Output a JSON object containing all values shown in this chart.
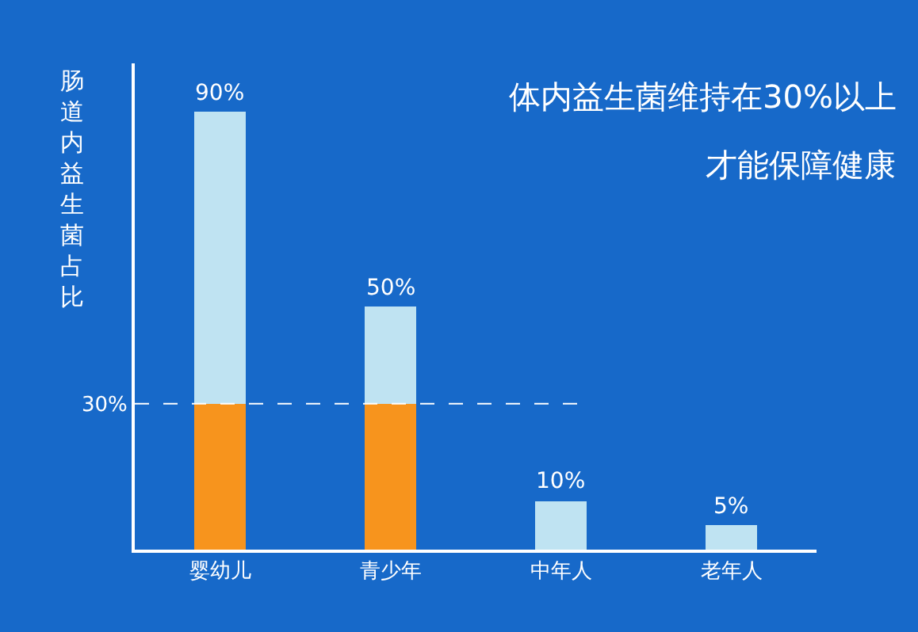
{
  "chart_data": {
    "type": "bar",
    "stacked": true,
    "ylabel": "肠道内益生菌占比",
    "categories": [
      "婴幼儿",
      "青少年",
      "中年人",
      "老年人"
    ],
    "series": [
      {
        "color": "#f7941d",
        "values": [
          30,
          30,
          null,
          null
        ]
      },
      {
        "color": "#bfe3f2",
        "values": [
          60,
          20,
          10,
          5
        ]
      }
    ],
    "totals": [
      "90%",
      "50%",
      "10%",
      "5%"
    ],
    "ylim": [
      0,
      100
    ],
    "yticks": [
      {
        "value": 30,
        "label": "30%"
      }
    ],
    "ref_lines": [
      {
        "axis": "y",
        "value": 30,
        "color": "#ffffff",
        "line_style": "dashed"
      }
    ],
    "annotations": [
      "体内益生菌维持在30%以上",
      "才能保障健康"
    ],
    "grid": false
  }
}
